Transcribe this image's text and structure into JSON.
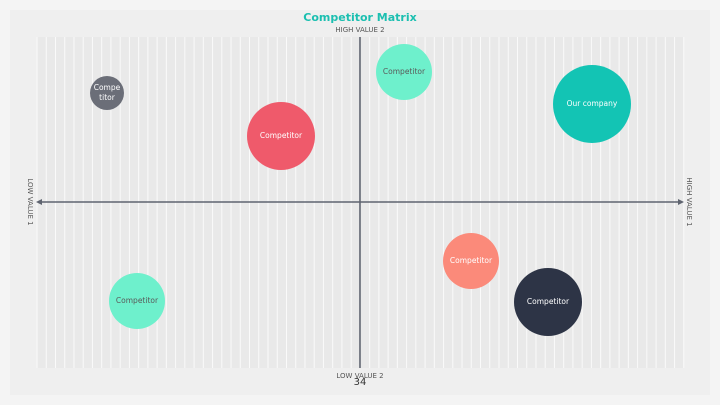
{
  "title": "Competitor Matrix",
  "axes": {
    "top": "HIGH VALUE 2",
    "bottom": "LOW VALUE 2",
    "left": "LOW VALUE 1",
    "right": "HIGH VALUE 1"
  },
  "bubbles": [
    {
      "lines": [
        "Compe",
        "titor"
      ]
    },
    {
      "lines": [
        "Competitor"
      ]
    },
    {
      "lines": [
        "Competitor"
      ]
    },
    {
      "lines": [
        "Our company"
      ]
    },
    {
      "lines": [
        "Competitor"
      ]
    },
    {
      "lines": [
        "Competitor"
      ]
    },
    {
      "lines": [
        "Competitor"
      ]
    }
  ],
  "page_number": "34"
}
